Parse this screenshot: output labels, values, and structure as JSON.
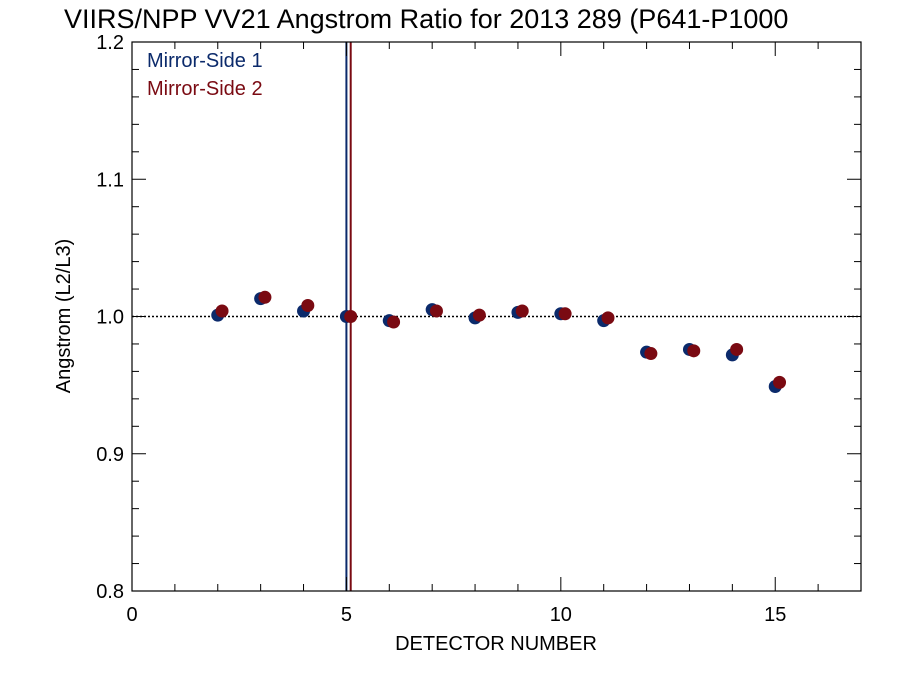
{
  "chart_data": {
    "type": "scatter",
    "title": "VIIRS/NPP VV21 Angstrom Ratio for 2013 289 (P641-P1000",
    "xlabel": "DETECTOR NUMBER",
    "ylabel": "Angstrom (L2/L3)",
    "xlim": [
      0,
      17
    ],
    "ylim": [
      0.8,
      1.2
    ],
    "x_ticks": [
      0,
      5,
      10,
      15
    ],
    "x_tick_labels": [
      "0",
      "5",
      "10",
      "15"
    ],
    "y_ticks": [
      0.8,
      0.9,
      1.0,
      1.1,
      1.2
    ],
    "y_tick_labels": [
      "0.8",
      "0.9",
      "1.0",
      "1.1",
      "1.2"
    ],
    "grid": false,
    "legend_position": "top-left",
    "reference_line": {
      "y": 1.0,
      "style": "dotted",
      "color": "#000000"
    },
    "vertical_lines": [
      {
        "x": 5.0,
        "color": "#0b2a6b"
      },
      {
        "x": 5.1,
        "color": "#7a0a12"
      }
    ],
    "series": [
      {
        "name": "Mirror-Side 1",
        "color": "#0b2a6b",
        "x": [
          2,
          3,
          4,
          5,
          6,
          7,
          8,
          9,
          10,
          11,
          12,
          13,
          14,
          15
        ],
        "y": [
          1.001,
          1.013,
          1.004,
          1.0,
          0.997,
          1.005,
          0.999,
          1.003,
          1.002,
          0.997,
          0.974,
          0.976,
          0.972,
          0.949
        ]
      },
      {
        "name": "Mirror-Side 2",
        "color": "#7a0a12",
        "x": [
          2.1,
          3.1,
          4.1,
          5.1,
          6.1,
          7.1,
          8.1,
          9.1,
          10.1,
          11.1,
          12.1,
          13.1,
          14.1,
          15.1
        ],
        "y": [
          1.004,
          1.014,
          1.008,
          1.0,
          0.996,
          1.004,
          1.001,
          1.004,
          1.002,
          0.999,
          0.973,
          0.975,
          0.976,
          0.952
        ]
      }
    ]
  }
}
